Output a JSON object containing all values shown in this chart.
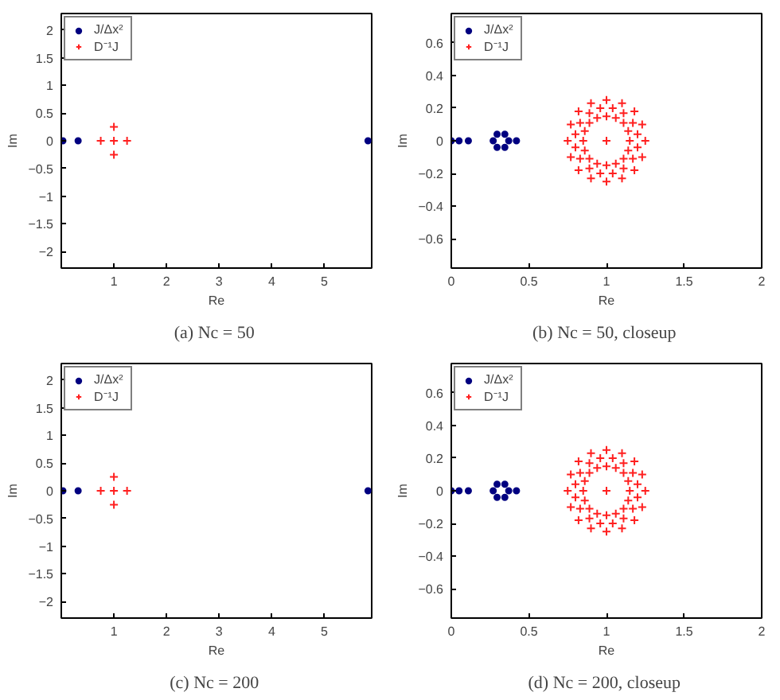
{
  "chart_data": [
    {
      "type": "scatter",
      "xlabel": "Re",
      "ylabel": "Im",
      "annotations": [
        "(a)  Nc = 50"
      ],
      "xlim": [
        0,
        5.9
      ],
      "xticks": [
        1,
        2,
        3,
        4,
        5
      ],
      "ylim": [
        -2.3,
        2.3
      ],
      "yticks": [
        -2,
        -1.5,
        -1,
        -0.5,
        0,
        0.5,
        1,
        1.5,
        2
      ],
      "grid": false,
      "legend": "top left",
      "series": [
        {
          "name": "J/Δx²",
          "color": "#000080",
          "marker": "circle",
          "x": [
            0.03,
            0.32,
            5.83
          ],
          "values": [
            0,
            0,
            0
          ]
        },
        {
          "name": "D⁻¹J",
          "color": "#ff2020",
          "marker": "cross",
          "x": [
            1.25,
            1,
            0.75,
            1,
            1
          ],
          "values": [
            0,
            0.25,
            0,
            -0.25,
            0
          ]
        }
      ]
    },
    {
      "type": "scatter",
      "xlabel": "Re",
      "ylabel": "Im",
      "annotations": [
        "(b)  Nc = 50, closeup"
      ],
      "xlim": [
        0,
        2
      ],
      "xticks": [
        0,
        0.5,
        1,
        1.5,
        2
      ],
      "ylim": [
        -0.78,
        0.78
      ],
      "yticks": [
        -0.6,
        -0.4,
        -0.2,
        0,
        0.2,
        0.4,
        0.6
      ],
      "grid": false,
      "legend": "top left",
      "series": [
        {
          "name": "J/Δx²",
          "color": "#000080",
          "marker": "circle",
          "x": [
            0,
            0.05,
            0.11,
            0.37,
            0.345,
            0.295,
            0.27,
            0.295,
            0.345,
            0.42
          ],
          "values": [
            0,
            0,
            0,
            0,
            0.04,
            0.04,
            0,
            -0.04,
            -0.04,
            0
          ]
        },
        {
          "name": "D⁻¹J",
          "color": "#ff2020",
          "marker": "cross",
          "x": [
            1.25,
            1.23,
            1.18,
            1.1,
            1,
            0.9,
            0.82,
            0.77,
            0.75,
            0.77,
            0.82,
            0.9,
            1,
            1.1,
            1.18,
            1.23,
            1.2,
            1.17,
            1.11,
            1.04,
            0.96,
            0.89,
            0.83,
            0.8,
            0.8,
            0.83,
            0.89,
            0.96,
            1.04,
            1.11,
            1.17,
            1.2,
            1.15,
            1.14,
            1.11,
            1.06,
            1,
            0.94,
            0.89,
            0.86,
            0.85,
            0.86,
            0.89,
            0.94,
            1,
            1.06,
            1.11,
            1.14,
            1
          ],
          "values": [
            0,
            0.1,
            0.18,
            0.23,
            0.25,
            0.23,
            0.18,
            0.1,
            0,
            -0.1,
            -0.18,
            -0.23,
            -0.25,
            -0.23,
            -0.18,
            -0.1,
            0.04,
            0.11,
            0.17,
            0.2,
            0.2,
            0.17,
            0.11,
            0.04,
            -0.04,
            -0.11,
            -0.17,
            -0.2,
            -0.2,
            -0.17,
            -0.11,
            -0.04,
            0,
            0.06,
            0.11,
            0.14,
            0.15,
            0.14,
            0.11,
            0.06,
            0,
            -0.06,
            -0.11,
            -0.14,
            -0.15,
            -0.14,
            -0.11,
            -0.06,
            0
          ]
        }
      ]
    },
    {
      "type": "scatter",
      "xlabel": "Re",
      "ylabel": "Im",
      "annotations": [
        "(c)  Nc = 200"
      ],
      "xlim": [
        0,
        5.9
      ],
      "xticks": [
        1,
        2,
        3,
        4,
        5
      ],
      "ylim": [
        -2.3,
        2.3
      ],
      "yticks": [
        -2,
        -1.5,
        -1,
        -0.5,
        0,
        0.5,
        1,
        1.5,
        2
      ],
      "grid": false,
      "legend": "top left",
      "series": [
        {
          "name": "J/Δx²",
          "color": "#000080",
          "marker": "circle",
          "x": [
            0.03,
            0.32,
            5.83
          ],
          "values": [
            0,
            0,
            0
          ]
        },
        {
          "name": "D⁻¹J",
          "color": "#ff2020",
          "marker": "cross",
          "x": [
            1.25,
            1,
            0.75,
            1,
            1
          ],
          "values": [
            0,
            0.25,
            0,
            -0.25,
            0
          ]
        }
      ]
    },
    {
      "type": "scatter",
      "xlabel": "Re",
      "ylabel": "Im",
      "annotations": [
        "(d)  Nc = 200, closeup"
      ],
      "xlim": [
        0,
        2
      ],
      "xticks": [
        0,
        0.5,
        1,
        1.5,
        2
      ],
      "ylim": [
        -0.78,
        0.78
      ],
      "yticks": [
        -0.6,
        -0.4,
        -0.2,
        0,
        0.2,
        0.4,
        0.6
      ],
      "grid": false,
      "legend": "top left",
      "series": [
        {
          "name": "J/Δx²",
          "color": "#000080",
          "marker": "circle",
          "x": [
            0,
            0.05,
            0.11,
            0.37,
            0.345,
            0.295,
            0.27,
            0.295,
            0.345,
            0.42
          ],
          "values": [
            0,
            0,
            0,
            0,
            0.04,
            0.04,
            0,
            -0.04,
            -0.04,
            0
          ]
        },
        {
          "name": "D⁻¹J",
          "color": "#ff2020",
          "marker": "cross",
          "x": [
            1.25,
            1.23,
            1.18,
            1.1,
            1,
            0.9,
            0.82,
            0.77,
            0.75,
            0.77,
            0.82,
            0.9,
            1,
            1.1,
            1.18,
            1.23,
            1.2,
            1.17,
            1.11,
            1.04,
            0.96,
            0.89,
            0.83,
            0.8,
            0.8,
            0.83,
            0.89,
            0.96,
            1.04,
            1.11,
            1.17,
            1.2,
            1.15,
            1.14,
            1.11,
            1.06,
            1,
            0.94,
            0.89,
            0.86,
            0.85,
            0.86,
            0.89,
            0.94,
            1,
            1.06,
            1.11,
            1.14,
            1
          ],
          "values": [
            0,
            0.1,
            0.18,
            0.23,
            0.25,
            0.23,
            0.18,
            0.1,
            0,
            -0.1,
            -0.18,
            -0.23,
            -0.25,
            -0.23,
            -0.18,
            -0.1,
            0.04,
            0.11,
            0.17,
            0.2,
            0.2,
            0.17,
            0.11,
            0.04,
            -0.04,
            -0.11,
            -0.17,
            -0.2,
            -0.2,
            -0.17,
            -0.11,
            -0.04,
            0,
            0.06,
            0.11,
            0.14,
            0.15,
            0.14,
            0.11,
            0.06,
            0,
            -0.06,
            -0.11,
            -0.14,
            -0.15,
            -0.14,
            -0.11,
            -0.06,
            0
          ]
        }
      ]
    }
  ]
}
